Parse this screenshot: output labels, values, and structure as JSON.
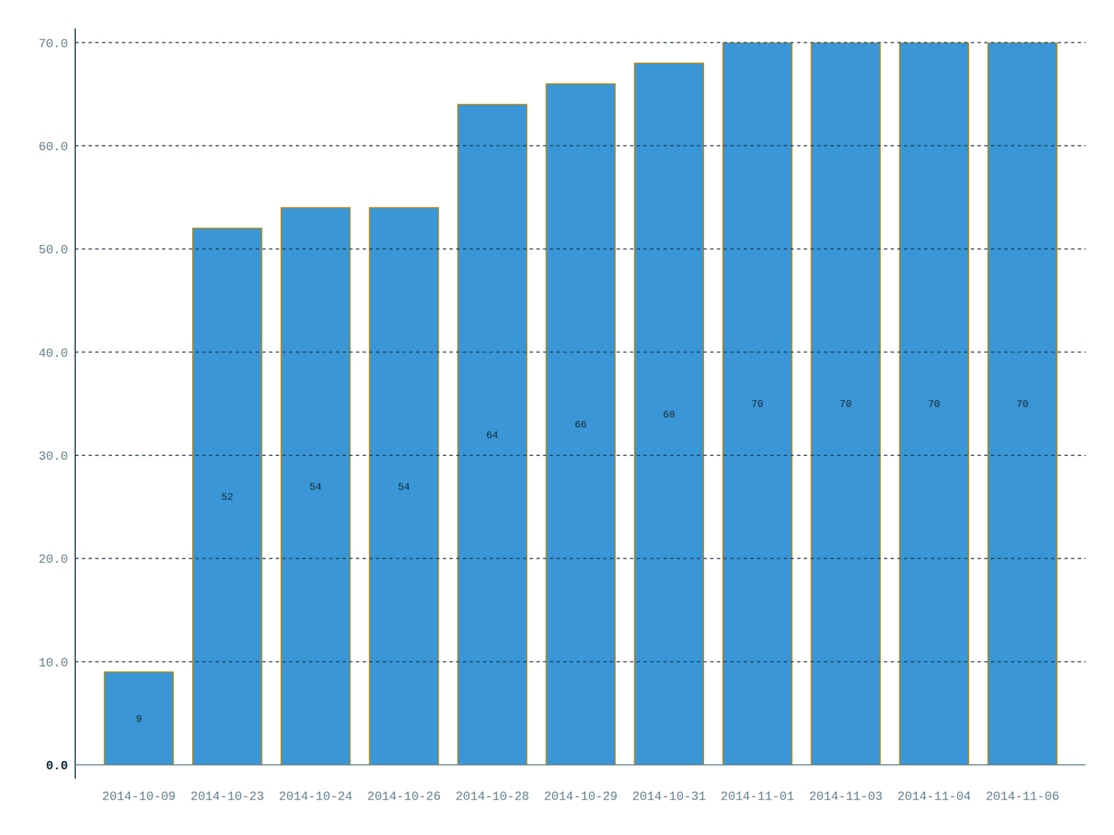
{
  "chart_data": {
    "type": "bar",
    "categories": [
      "2014-10-09",
      "2014-10-23",
      "2014-10-24",
      "2014-10-26",
      "2014-10-28",
      "2014-10-29",
      "2014-10-31",
      "2014-11-01",
      "2014-11-03",
      "2014-11-04",
      "2014-11-06"
    ],
    "values": [
      9,
      52,
      54,
      54,
      64,
      66,
      68,
      70,
      70,
      70,
      70
    ],
    "color": "#3a96d6",
    "ylim": [
      0,
      70
    ],
    "yticks": [
      {
        "value": 0,
        "label": "0.0"
      },
      {
        "value": 10,
        "label": "10.0"
      },
      {
        "value": 20,
        "label": "20.0"
      },
      {
        "value": 30,
        "label": "30.0"
      },
      {
        "value": 40,
        "label": "40.0"
      },
      {
        "value": 50,
        "label": "50.0"
      },
      {
        "value": 60,
        "label": "60.0"
      },
      {
        "value": 70,
        "label": "70.0"
      }
    ],
    "grid": true,
    "data_labels": true
  }
}
